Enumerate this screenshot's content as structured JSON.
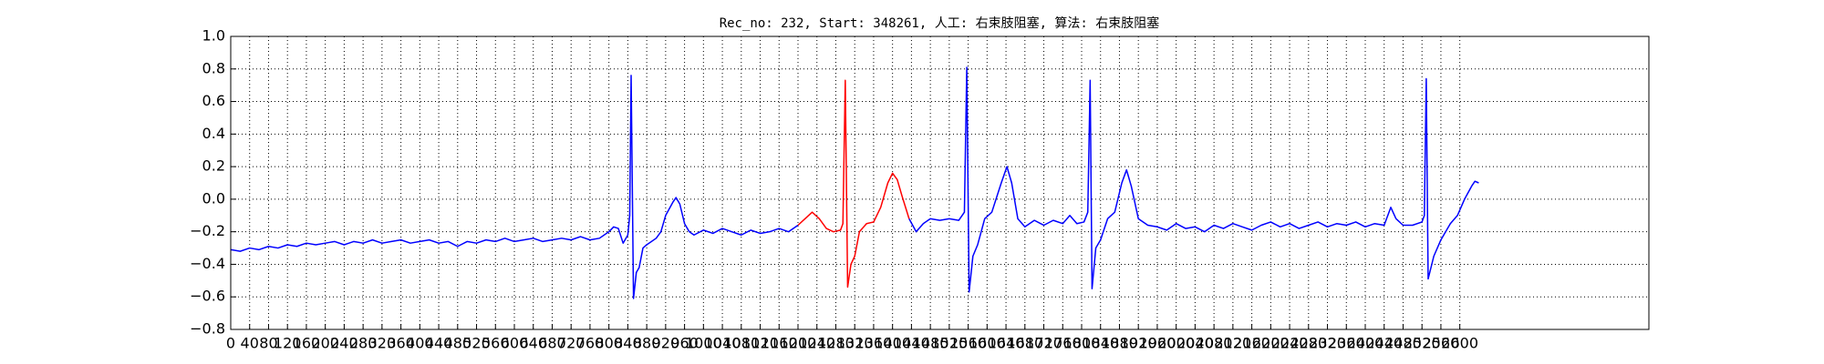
{
  "chart_data": {
    "type": "line",
    "title": "Rec_no: 232, Start: 348261, 人工: 右束肢阻塞, 算法: 右束肢阻塞",
    "xlim": [
      0,
      3000
    ],
    "ylim": [
      -0.8,
      1.0
    ],
    "xticks": [
      0,
      40,
      80,
      120,
      160,
      200,
      240,
      280,
      320,
      360,
      400,
      440,
      480,
      520,
      560,
      600,
      640,
      680,
      720,
      760,
      800,
      840,
      880,
      920,
      960,
      1000,
      1040,
      1080,
      1120,
      1160,
      1200,
      1240,
      1280,
      1320,
      1360,
      1400,
      1440,
      1480,
      1520,
      1560,
      1600,
      1640,
      1680,
      1720,
      1760,
      1800,
      1840,
      1880,
      1920,
      1960,
      2000,
      2040,
      2080,
      2120,
      2160,
      2200,
      2240,
      2280,
      2320,
      2360,
      2400,
      2440,
      2480,
      2520,
      2560,
      2600
    ],
    "yticks": [
      {
        "value": -0.8,
        "label": "−0.8"
      },
      {
        "value": -0.6,
        "label": "−0.6"
      },
      {
        "value": -0.4,
        "label": "−0.4"
      },
      {
        "value": -0.2,
        "label": "−0.2"
      },
      {
        "value": 0,
        "label": "0.0"
      },
      {
        "value": 0.2,
        "label": "0.2"
      },
      {
        "value": 0.4,
        "label": "0.4"
      },
      {
        "value": 0.6,
        "label": "0.6"
      },
      {
        "value": 0.8,
        "label": "0.8"
      },
      {
        "value": 1,
        "label": "1.0"
      }
    ],
    "grid": true,
    "series": [
      {
        "color": "#0000ff",
        "x": [
          0,
          20,
          40,
          60,
          80,
          100,
          120,
          140,
          160,
          180,
          200,
          220,
          240,
          260,
          280,
          300,
          320,
          340,
          360,
          380,
          400,
          420,
          440,
          460,
          480,
          500,
          520,
          540,
          560,
          580,
          600,
          620,
          640,
          660,
          680,
          700,
          720,
          740,
          760,
          780,
          800,
          810,
          820,
          830,
          840,
          844,
          847,
          852,
          858,
          864,
          872,
          880,
          900,
          910,
          920,
          935,
          942,
          950,
          960,
          970,
          980,
          1000,
          1020,
          1040,
          1060,
          1080,
          1100,
          1120,
          1140,
          1160,
          1180,
          1200,
          1300,
          1435,
          1450,
          1465,
          1480,
          1500,
          1520,
          1540,
          1552,
          1557,
          1562,
          1570,
          1580,
          1595,
          1610,
          1630,
          1642,
          1652,
          1665,
          1680,
          1700,
          1720,
          1740,
          1760,
          1775,
          1790,
          1805,
          1813,
          1818,
          1822,
          1830,
          1840,
          1855,
          1870,
          1885,
          1895,
          1905,
          1920,
          1940,
          1960,
          1980,
          2000,
          2020,
          2040,
          2060,
          2080,
          2100,
          2120,
          2140,
          2160,
          2180,
          2200,
          2220,
          2240,
          2260,
          2280,
          2300,
          2320,
          2340,
          2360,
          2380,
          2400,
          2420,
          2440,
          2454,
          2465,
          2480,
          2500,
          2520,
          2525,
          2529,
          2533,
          2545,
          2560,
          2580,
          2595,
          2610,
          2625,
          2632,
          2640
        ],
        "values": [
          -0.31,
          -0.32,
          -0.3,
          -0.31,
          -0.29,
          -0.3,
          -0.28,
          -0.29,
          -0.27,
          -0.28,
          -0.27,
          -0.26,
          -0.28,
          -0.26,
          -0.27,
          -0.25,
          -0.27,
          -0.26,
          -0.25,
          -0.27,
          -0.26,
          -0.25,
          -0.27,
          -0.26,
          -0.29,
          -0.26,
          -0.27,
          -0.25,
          -0.26,
          -0.24,
          -0.26,
          -0.25,
          -0.24,
          -0.26,
          -0.25,
          -0.24,
          -0.25,
          -0.23,
          -0.25,
          -0.24,
          -0.2,
          -0.17,
          -0.18,
          -0.27,
          -0.22,
          -0.1,
          0.76,
          -0.61,
          -0.45,
          -0.42,
          -0.3,
          -0.28,
          -0.24,
          -0.2,
          -0.1,
          -0.02,
          0.01,
          -0.03,
          -0.15,
          -0.2,
          -0.22,
          -0.19,
          -0.21,
          -0.18,
          -0.2,
          -0.22,
          -0.19,
          -0.21,
          -0.2,
          -0.18,
          -0.2,
          -0.16,
          null,
          -0.12,
          -0.2,
          -0.15,
          -0.12,
          -0.13,
          -0.12,
          -0.13,
          -0.08,
          0.81,
          -0.57,
          -0.35,
          -0.28,
          -0.12,
          -0.08,
          0.1,
          0.2,
          0.1,
          -0.12,
          -0.17,
          -0.13,
          -0.16,
          -0.13,
          -0.15,
          -0.1,
          -0.15,
          -0.14,
          -0.08,
          0.73,
          -0.55,
          -0.3,
          -0.25,
          -0.12,
          -0.08,
          0.1,
          0.18,
          0.08,
          -0.12,
          -0.16,
          -0.17,
          -0.19,
          -0.15,
          -0.18,
          -0.17,
          -0.2,
          -0.16,
          -0.18,
          -0.15,
          -0.17,
          -0.19,
          -0.16,
          -0.14,
          -0.17,
          -0.15,
          -0.18,
          -0.16,
          -0.14,
          -0.17,
          -0.15,
          -0.16,
          -0.14,
          -0.17,
          -0.15,
          -0.16,
          -0.05,
          -0.12,
          -0.16,
          -0.16,
          -0.14,
          -0.1,
          0.74,
          -0.49,
          -0.35,
          -0.25,
          -0.15,
          -0.1,
          0.0,
          0.08,
          0.11,
          0.1
        ]
      },
      {
        "color": "#ff0000",
        "x": [
          1200,
          1215,
          1230,
          1245,
          1260,
          1275,
          1290,
          1295,
          1300,
          1305,
          1312,
          1320,
          1330,
          1345,
          1360,
          1375,
          1390,
          1400,
          1410,
          1420,
          1435
        ],
        "values": [
          -0.16,
          -0.12,
          -0.08,
          -0.12,
          -0.18,
          -0.2,
          -0.19,
          -0.15,
          0.73,
          -0.54,
          -0.4,
          -0.35,
          -0.2,
          -0.15,
          -0.14,
          -0.05,
          0.1,
          0.16,
          0.12,
          0.02,
          -0.12
        ]
      }
    ]
  }
}
